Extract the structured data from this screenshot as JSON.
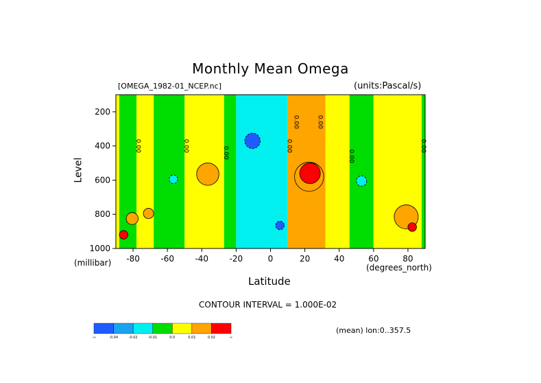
{
  "chart_data": {
    "type": "heatmap",
    "title": "Monthly Mean Omega",
    "file_label": "[OMEGA_1982-01_NCEP.nc]",
    "units_label": "(units:Pascal/s)",
    "xlabel": "Latitude",
    "x_unit": "(degrees_north)",
    "ylabel": "Level",
    "y_unit": "(millibar)",
    "xlim": [
      -90,
      90
    ],
    "ylim": [
      1000,
      100
    ],
    "x_ticks": [
      -80,
      -60,
      -40,
      -20,
      0,
      20,
      40,
      60,
      80
    ],
    "y_ticks": [
      200,
      400,
      600,
      800,
      1000
    ],
    "contour_interval": "CONTOUR INTERVAL = 1.000E-02",
    "mean_note": "(mean) lon:0..357.5",
    "contour_labels": [
      "0.00",
      "0.00",
      "0.00",
      "0.00",
      "0.00",
      "0.00",
      "0.00",
      "0.00"
    ],
    "colorbar": {
      "labels": [
        "-∞",
        "-0.04",
        "-0.02",
        "-0.01",
        "0.0",
        "0.01",
        "0.02",
        "∞"
      ],
      "colors": [
        "#1e5cff",
        "#1aa3f0",
        "#00f0f0",
        "#00dd00",
        "#ffff00",
        "#ffa500",
        "#ff0000"
      ]
    },
    "bands": [
      {
        "lat": [
          -90,
          -88
        ],
        "value": 0.005
      },
      {
        "lat": [
          -88,
          -78
        ],
        "value": -0.005
      },
      {
        "lat": [
          -78,
          -68
        ],
        "value": 0.005
      },
      {
        "lat": [
          -68,
          -50
        ],
        "value": -0.005
      },
      {
        "lat": [
          -50,
          -27
        ],
        "value": 0.005
      },
      {
        "lat": [
          -27,
          -20
        ],
        "value": -0.005
      },
      {
        "lat": [
          -20,
          10
        ],
        "value": -0.015
      },
      {
        "lat": [
          10,
          32
        ],
        "value": 0.015
      },
      {
        "lat": [
          32,
          46
        ],
        "value": 0.005
      },
      {
        "lat": [
          46,
          60
        ],
        "value": -0.005
      },
      {
        "lat": [
          60,
          88
        ],
        "value": 0.005
      },
      {
        "lat": [
          88,
          90
        ],
        "value": -0.005
      }
    ],
    "features": [
      {
        "lat": [
          -84,
          -77
        ],
        "lev": [
          650,
          1000
        ],
        "value": 0.015
      },
      {
        "lat": [
          -88,
          -83
        ],
        "lev": [
          850,
          990
        ],
        "value": 0.025
      },
      {
        "lat": [
          -74,
          -68
        ],
        "lev": [
          600,
          990
        ],
        "value": 0.015
      },
      {
        "lat": [
          -59,
          -54
        ],
        "lev": [
          350,
          840
        ],
        "value": -0.015
      },
      {
        "lat": [
          -43,
          -30
        ],
        "lev": [
          300,
          830
        ],
        "value": 0.015
      },
      {
        "lat": [
          -15,
          -6
        ],
        "lev": [
          270,
          470
        ],
        "value": -0.045
      },
      {
        "lat": [
          3,
          8
        ],
        "lev": [
          790,
          940
        ],
        "value": -0.045
      },
      {
        "lat": [
          14,
          31
        ],
        "lev": [
          190,
          970
        ],
        "value": 0.015
      },
      {
        "lat": [
          17,
          29
        ],
        "lev": [
          220,
          900
        ],
        "value": 0.025
      },
      {
        "lat": [
          50,
          56
        ],
        "lev": [
          350,
          860
        ],
        "value": -0.015
      },
      {
        "lat": [
          72,
          86
        ],
        "lev": [
          640,
          990
        ],
        "value": 0.015
      },
      {
        "lat": [
          80,
          85
        ],
        "lev": [
          820,
          930
        ],
        "value": 0.025
      }
    ]
  }
}
